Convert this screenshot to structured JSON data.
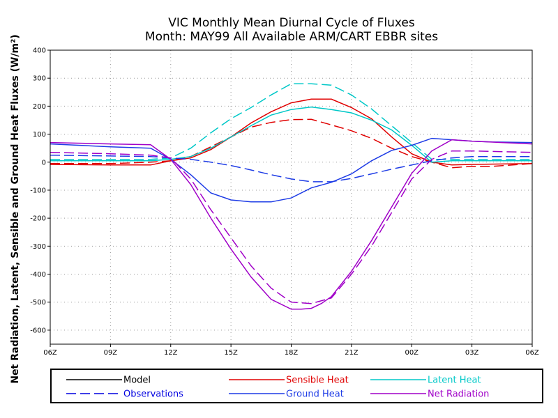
{
  "chart_data": {
    "type": "line",
    "title_lines": [
      "VIC Monthly Mean Diurnal Cycle of Fluxes",
      "Month: MAY99 All Available ARM/CART EBBR sites"
    ],
    "xlabel": "",
    "ylabel": "Net Radiation, Latent, Sensible and Ground Heat Fluxes (W/m²)",
    "x_ticks": [
      "06Z",
      "09Z",
      "12Z",
      "15Z",
      "18Z",
      "21Z",
      "00Z",
      "03Z",
      "06Z"
    ],
    "x_range": [
      6,
      30
    ],
    "ylim": [
      -650,
      400
    ],
    "y_ticks": [
      400,
      300,
      200,
      100,
      0,
      -100,
      -200,
      -300,
      -400,
      -500,
      -600
    ],
    "grid": true,
    "legend": {
      "placement": "bottom",
      "entries": [
        {
          "label": "Model",
          "color": "#000000",
          "dash": "solid"
        },
        {
          "label": "Sensible Heat",
          "color": "#e00000",
          "dash": "solid"
        },
        {
          "label": "Latent Heat",
          "color": "#00c8c8",
          "dash": "solid"
        },
        {
          "label": "Observations",
          "color": "#0000e0",
          "dash": "dashed"
        },
        {
          "label": "Ground Heat",
          "color": "#1e3ce6",
          "dash": "solid"
        },
        {
          "label": "Net Radiation",
          "color": "#a000c8",
          "dash": "solid"
        }
      ]
    },
    "series": [
      {
        "name": "Sensible Heat",
        "kind": "Model",
        "color": "#e00000",
        "dash": "solid",
        "x": [
          6,
          9,
          11,
          12,
          13,
          14,
          15,
          16,
          17,
          18,
          19,
          20,
          21,
          22,
          23,
          24,
          25,
          26,
          27,
          30
        ],
        "y": [
          -8,
          -10,
          -10,
          5,
          15,
          45,
          90,
          140,
          180,
          212,
          225,
          225,
          195,
          155,
          90,
          30,
          0,
          -10,
          -8,
          -5
        ]
      },
      {
        "name": "Sensible Heat",
        "kind": "Observations",
        "color": "#e00000",
        "dash": "dashed",
        "x": [
          6,
          9,
          11,
          12,
          13,
          14,
          15,
          16,
          17,
          18,
          19,
          20,
          21,
          22,
          23,
          24,
          25,
          26,
          27,
          28,
          30
        ],
        "y": [
          -5,
          -5,
          0,
          5,
          20,
          55,
          90,
          125,
          142,
          152,
          153,
          133,
          112,
          85,
          50,
          20,
          0,
          -20,
          -15,
          -15,
          -5
        ]
      },
      {
        "name": "Latent Heat",
        "kind": "Model",
        "color": "#00c8c8",
        "dash": "solid",
        "x": [
          6,
          9,
          11,
          12,
          13,
          14,
          15,
          16,
          17,
          18,
          19,
          20,
          21,
          22,
          23,
          24,
          25,
          26,
          30
        ],
        "y": [
          5,
          5,
          5,
          10,
          20,
          50,
          90,
          130,
          168,
          188,
          197,
          188,
          176,
          150,
          115,
          60,
          0,
          5,
          5
        ]
      },
      {
        "name": "Latent Heat",
        "kind": "Observations",
        "color": "#00c8c8",
        "dash": "dashed",
        "x": [
          6,
          9,
          11,
          12,
          13,
          14,
          15,
          16,
          17,
          18,
          19,
          20,
          21,
          22,
          23,
          24,
          25,
          26,
          30
        ],
        "y": [
          10,
          10,
          10,
          15,
          50,
          105,
          155,
          195,
          240,
          280,
          280,
          275,
          240,
          190,
          130,
          70,
          10,
          10,
          10
        ]
      },
      {
        "name": "Ground Heat",
        "kind": "Model",
        "color": "#1e3ce6",
        "dash": "solid",
        "x": [
          6,
          9,
          11,
          12,
          13,
          14,
          15,
          16,
          17,
          18,
          19,
          20,
          21,
          22,
          23,
          24,
          25,
          26,
          27,
          28,
          30
        ],
        "y": [
          65,
          55,
          50,
          10,
          -45,
          -110,
          -135,
          -142,
          -142,
          -128,
          -92,
          -72,
          -42,
          5,
          42,
          60,
          85,
          80,
          75,
          72,
          70
        ]
      },
      {
        "name": "Ground Heat",
        "kind": "Observations",
        "color": "#1e3ce6",
        "dash": "dashed",
        "x": [
          6,
          9,
          11,
          12,
          13,
          14,
          15,
          16,
          17,
          18,
          19,
          20,
          21,
          22,
          23,
          24,
          25,
          26,
          27,
          30
        ],
        "y": [
          25,
          22,
          20,
          15,
          10,
          0,
          -12,
          -28,
          -45,
          -60,
          -70,
          -70,
          -58,
          -42,
          -25,
          -10,
          5,
          15,
          20,
          20
        ]
      },
      {
        "name": "Net Radiation",
        "kind": "Model",
        "color": "#a000c8",
        "dash": "solid",
        "x": [
          6,
          9,
          11,
          12,
          13,
          14,
          15,
          16,
          17,
          18,
          18.5,
          19,
          19.5,
          20,
          21,
          22,
          23,
          24,
          25,
          26,
          27,
          30
        ],
        "y": [
          70,
          65,
          62,
          10,
          -80,
          -200,
          -310,
          -410,
          -490,
          -525,
          -525,
          -522,
          -505,
          -480,
          -390,
          -280,
          -160,
          -40,
          40,
          80,
          75,
          65
        ]
      },
      {
        "name": "Net Radiation",
        "kind": "Observations",
        "color": "#a000c8",
        "dash": "dashed",
        "x": [
          6,
          9,
          11,
          12,
          13,
          14,
          15,
          16,
          17,
          18,
          19,
          20,
          21,
          22,
          23,
          24,
          25,
          26,
          27,
          30
        ],
        "y": [
          35,
          30,
          25,
          15,
          -60,
          -170,
          -270,
          -370,
          -450,
          -500,
          -505,
          -485,
          -400,
          -300,
          -180,
          -60,
          10,
          40,
          40,
          35
        ]
      }
    ]
  }
}
